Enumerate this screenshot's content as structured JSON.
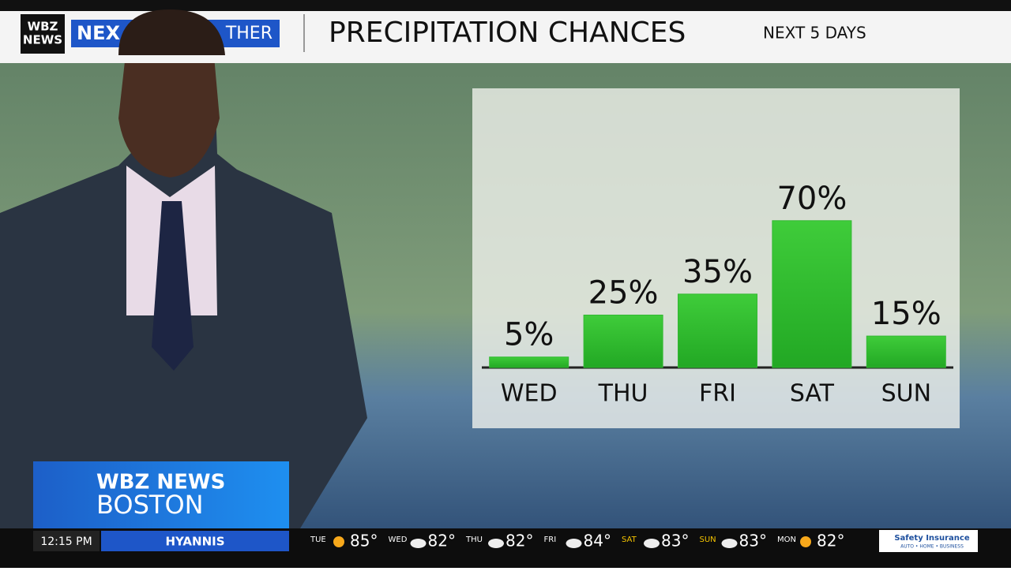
{
  "header": {
    "logo": [
      "WBZ",
      "NEWS"
    ],
    "brand": [
      "NEX",
      "THER"
    ],
    "title": "PRECIPITATION CHANCES",
    "subtitle": "NEXT 5 DAYS"
  },
  "chart_data": {
    "type": "bar",
    "categories": [
      "WED",
      "THU",
      "FRI",
      "SAT",
      "SUN"
    ],
    "values": [
      5,
      25,
      35,
      70,
      15
    ],
    "value_labels": [
      "5%",
      "25%",
      "35%",
      "70%",
      "15%"
    ],
    "color": "#33b833",
    "ylim": [
      0,
      100
    ]
  },
  "lower_third": {
    "line1": "WBZ NEWS",
    "line2": "BOSTON",
    "time": "12:15 PM",
    "location": "HYANNIS"
  },
  "ticker": [
    {
      "day": "TUE",
      "temp": "85°",
      "icon": "sun"
    },
    {
      "day": "WED",
      "temp": "82°",
      "icon": "cloud"
    },
    {
      "day": "THU",
      "temp": "82°",
      "icon": "cloud"
    },
    {
      "day": "FRI",
      "temp": "84°",
      "icon": "cloud"
    },
    {
      "day": "SAT",
      "temp": "83°",
      "icon": "cloud"
    },
    {
      "day": "SUN",
      "temp": "83°",
      "icon": "cloud"
    },
    {
      "day": "MON",
      "temp": "82°",
      "icon": "sun"
    }
  ],
  "sponsor": {
    "name": "Safety Insurance",
    "tagline": "AUTO • HOME • BUSINESS"
  }
}
